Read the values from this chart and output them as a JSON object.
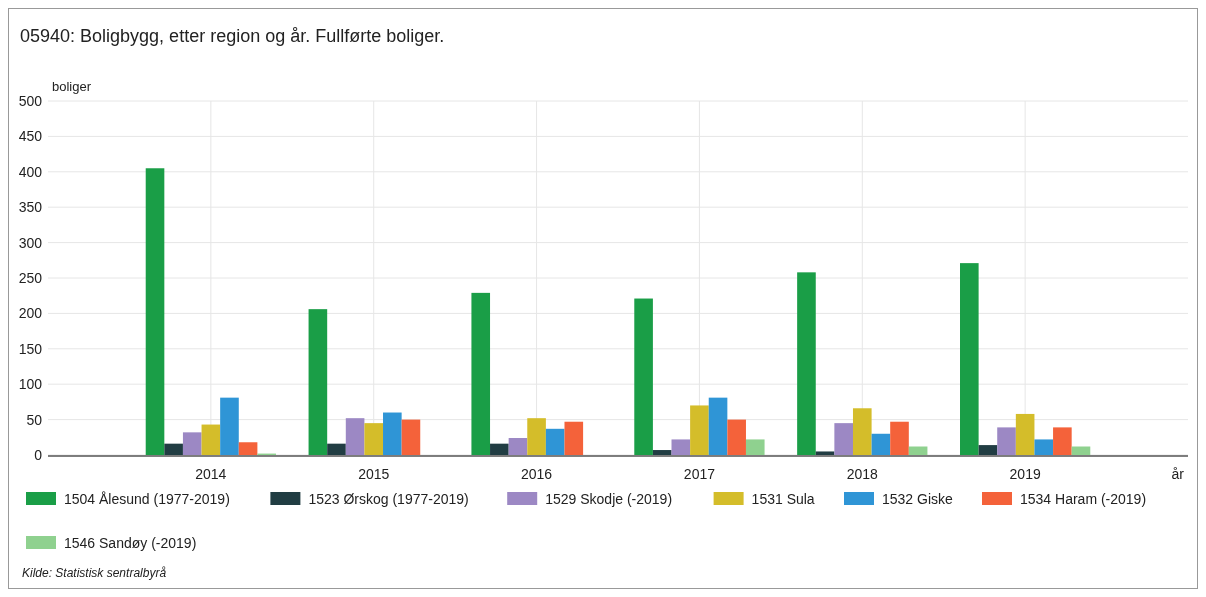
{
  "chart_data": {
    "type": "bar",
    "title": "05940: Boligbygg, etter region og år. Fullførte boliger.",
    "ylabel": "boliger",
    "xlabel": "år",
    "x": [
      2014,
      2015,
      2016,
      2017,
      2018,
      2019
    ],
    "xlim": [
      2013,
      2020
    ],
    "xticks": [
      2014,
      2015,
      2016,
      2017,
      2018,
      2019
    ],
    "ylim": [
      0,
      500
    ],
    "yticks": [
      0,
      50,
      100,
      150,
      200,
      250,
      300,
      350,
      400,
      450,
      500
    ],
    "grid": true,
    "legend": "bottom",
    "series": [
      {
        "name": "1504 Ålesund (1977-2019)",
        "color": "#1a9e47",
        "values": [
          405,
          206,
          229,
          221,
          258,
          271
        ]
      },
      {
        "name": "1523 Ørskog (1977-2019)",
        "color": "#213d43",
        "values": [
          16,
          16,
          16,
          7,
          5,
          14
        ]
      },
      {
        "name": "1529 Skodje (-2019)",
        "color": "#9c88c4",
        "values": [
          32,
          52,
          24,
          22,
          45,
          39
        ]
      },
      {
        "name": "1531 Sula",
        "color": "#d4bd2a",
        "values": [
          43,
          45,
          52,
          70,
          66,
          58
        ]
      },
      {
        "name": "1532 Giske",
        "color": "#2f95d6",
        "values": [
          81,
          60,
          37,
          81,
          30,
          22
        ]
      },
      {
        "name": "1534 Haram (-2019)",
        "color": "#f4623a",
        "values": [
          18,
          50,
          47,
          50,
          47,
          39
        ]
      },
      {
        "name": "1546 Sandøy (-2019)",
        "color": "#8fd18f",
        "values": [
          2,
          0,
          0,
          22,
          12,
          12
        ]
      }
    ],
    "annotations": [
      "Kilde: Statistisk sentralbyrå"
    ]
  }
}
